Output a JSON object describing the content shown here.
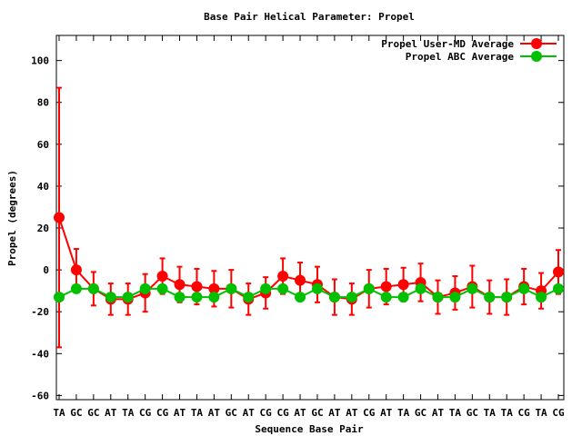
{
  "chart_data": {
    "type": "line",
    "title": "Base Pair Helical Parameter: Propel",
    "xlabel": "Sequence Base Pair",
    "ylabel": "Propel (degrees)",
    "ylim": [
      -62,
      112
    ],
    "yticks": [
      -60,
      -40,
      -20,
      0,
      20,
      40,
      60,
      80,
      100
    ],
    "legend_position": "top-right",
    "categories": [
      "TA",
      "GC",
      "GC",
      "AT",
      "TA",
      "CG",
      "CG",
      "AT",
      "TA",
      "AT",
      "GC",
      "AT",
      "CG",
      "CG",
      "AT",
      "GC",
      "AT",
      "AT",
      "CG",
      "AT",
      "TA",
      "GC",
      "AT",
      "TA",
      "GC",
      "TA",
      "TA",
      "CG",
      "TA",
      "CG"
    ],
    "series": [
      {
        "name": "Propel User-MD Average",
        "color": "#ff0000",
        "values": [
          25,
          0,
          -9,
          -14,
          -14,
          -11,
          -3,
          -7,
          -8,
          -9,
          -9,
          -14,
          -11,
          -3,
          -5,
          -7,
          -13,
          -14,
          -9,
          -8,
          -7,
          -6,
          -13,
          -11,
          -8,
          -13,
          -13,
          -8,
          -10,
          -1
        ],
        "errors": [
          62,
          10,
          8,
          7.5,
          7.5,
          9,
          8.5,
          8.5,
          8.5,
          8.5,
          9,
          7.5,
          7.5,
          8.5,
          8.5,
          8.5,
          8.5,
          7.5,
          9,
          8.5,
          8,
          9,
          8,
          8,
          10,
          8,
          8.5,
          8.5,
          8.5,
          10.5
        ]
      },
      {
        "name": "Propel ABC Average",
        "color": "#00c000",
        "values": [
          -13,
          -9,
          -9,
          -13,
          -13,
          -9,
          -9,
          -13,
          -13,
          -13,
          -9,
          -13,
          -9,
          -9,
          -13,
          -9,
          -13,
          -13,
          -9,
          -13,
          -13,
          -9,
          -13,
          -13,
          -9,
          -13,
          -13,
          -9,
          -13,
          -9
        ]
      }
    ]
  }
}
